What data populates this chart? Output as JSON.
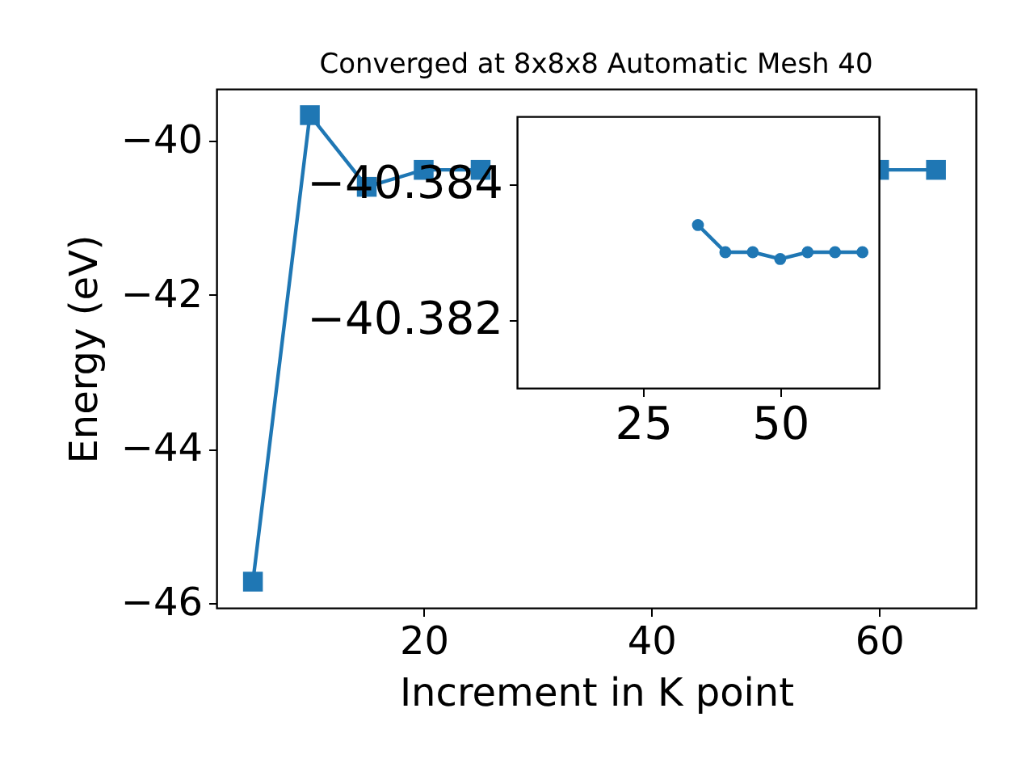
{
  "chart_data": [
    {
      "type": "line",
      "title": "Converged at 8x8x8 Automatic Mesh 40",
      "xlabel": "Increment in K point",
      "ylabel": "Energy (eV)",
      "x": [
        5,
        10,
        15,
        20,
        25,
        30,
        35,
        40,
        45,
        50,
        55,
        60,
        65
      ],
      "series": [
        {
          "color": "#1f77b4",
          "values": [
            -45.72,
            -39.67,
            -40.6,
            -40.38,
            -40.38,
            null,
            null,
            null,
            null,
            null,
            null,
            -40.38,
            -40.38
          ]
        }
      ],
      "xlim": [
        1.8,
        68.5
      ],
      "ylim": [
        -46.06,
        -39.33
      ],
      "xticks": [
        20,
        40,
        60
      ],
      "yticks": [
        -46,
        -44,
        -42,
        -40
      ],
      "marker": "square",
      "grid": false
    },
    {
      "type": "line",
      "x": [
        35,
        40,
        45,
        50,
        55,
        60,
        65
      ],
      "series": [
        {
          "color": "#1f77b4",
          "values": [
            -40.3834,
            -40.383,
            -40.383,
            -40.3829,
            -40.383,
            -40.383,
            -40.383
          ]
        }
      ],
      "xlim": [
        2,
        68
      ],
      "ylim": [
        -40.381,
        -40.385
      ],
      "xticks": [
        25,
        50
      ],
      "yticks": [
        -40.384,
        -40.382
      ],
      "marker": "circle",
      "grid": false
    }
  ]
}
